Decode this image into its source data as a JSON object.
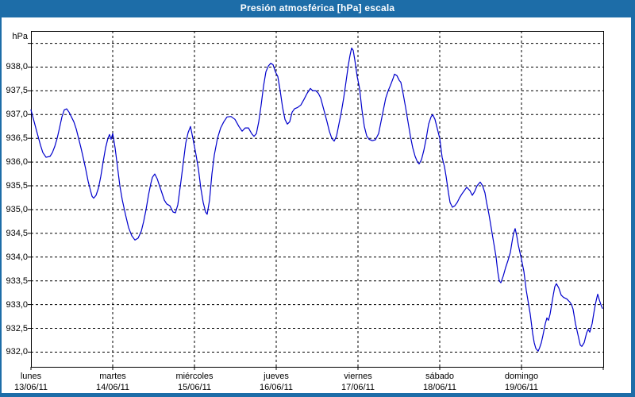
{
  "window": {
    "title": "Presión atmosférica [hPa] escala"
  },
  "colors": {
    "frame_blue": "#1d6da8",
    "panel_white": "#ffffff",
    "line_blue": "#0000cc",
    "grid_black": "#000000"
  },
  "chart_data": {
    "type": "line",
    "title": "Presión atmosférica [hPa] escala",
    "ylabel": "hPa",
    "unit_label": "hPa",
    "grid": "dashed",
    "legend": "none",
    "xlim": [
      0,
      7
    ],
    "ylim": [
      931.69,
      938.76
    ],
    "y_ticks": [
      {
        "v": 938.5,
        "label": ""
      },
      {
        "v": 938.0,
        "label": "938,0"
      },
      {
        "v": 937.5,
        "label": "937,5"
      },
      {
        "v": 937.0,
        "label": "937,0"
      },
      {
        "v": 936.5,
        "label": "936,5"
      },
      {
        "v": 936.0,
        "label": "936,0"
      },
      {
        "v": 935.5,
        "label": "935,5"
      },
      {
        "v": 935.0,
        "label": "935,0"
      },
      {
        "v": 934.5,
        "label": "934,5"
      },
      {
        "v": 934.0,
        "label": "934,0"
      },
      {
        "v": 933.5,
        "label": "933,5"
      },
      {
        "v": 933.0,
        "label": "933,0"
      },
      {
        "v": 932.5,
        "label": "932,5"
      },
      {
        "v": 932.0,
        "label": "932,0"
      }
    ],
    "x_gridlines": [
      1,
      2,
      3,
      4,
      5,
      6
    ],
    "x_labels": [
      {
        "pos": 0,
        "name": "lunes",
        "date": "13/06/11"
      },
      {
        "pos": 1,
        "name": "martes",
        "date": "14/06/11"
      },
      {
        "pos": 2,
        "name": "miércoles",
        "date": "15/06/11"
      },
      {
        "pos": 3,
        "name": "jueves",
        "date": "16/06/11"
      },
      {
        "pos": 4,
        "name": "viernes",
        "date": "17/06/11"
      },
      {
        "pos": 5,
        "name": "sábado",
        "date": "18/06/11"
      },
      {
        "pos": 6,
        "name": "domingo",
        "date": "19/06/11"
      }
    ],
    "series": [
      {
        "name": "Presión atmosférica",
        "color": "#0000cc",
        "points": [
          [
            0.0,
            937.1
          ],
          [
            0.039,
            936.85
          ],
          [
            0.078,
            936.6
          ],
          [
            0.117,
            936.35
          ],
          [
            0.146,
            936.2
          ],
          [
            0.184,
            936.1
          ],
          [
            0.233,
            936.12
          ],
          [
            0.262,
            936.2
          ],
          [
            0.291,
            936.33
          ],
          [
            0.32,
            936.5
          ],
          [
            0.35,
            936.72
          ],
          [
            0.379,
            936.95
          ],
          [
            0.408,
            937.1
          ],
          [
            0.437,
            937.12
          ],
          [
            0.466,
            937.05
          ],
          [
            0.495,
            936.95
          ],
          [
            0.524,
            936.85
          ],
          [
            0.553,
            936.7
          ],
          [
            0.583,
            936.5
          ],
          [
            0.612,
            936.3
          ],
          [
            0.641,
            936.08
          ],
          [
            0.67,
            935.85
          ],
          [
            0.699,
            935.6
          ],
          [
            0.728,
            935.4
          ],
          [
            0.748,
            935.28
          ],
          [
            0.767,
            935.24
          ],
          [
            0.796,
            935.3
          ],
          [
            0.825,
            935.45
          ],
          [
            0.854,
            935.7
          ],
          [
            0.883,
            936.0
          ],
          [
            0.913,
            936.3
          ],
          [
            0.942,
            936.5
          ],
          [
            0.961,
            936.58
          ],
          [
            0.981,
            936.48
          ],
          [
            1.0,
            936.6
          ],
          [
            1.029,
            936.3
          ],
          [
            1.058,
            935.9
          ],
          [
            1.087,
            935.5
          ],
          [
            1.117,
            935.2
          ],
          [
            1.155,
            934.9
          ],
          [
            1.194,
            934.62
          ],
          [
            1.233,
            934.45
          ],
          [
            1.272,
            934.36
          ],
          [
            1.311,
            934.4
          ],
          [
            1.35,
            934.55
          ],
          [
            1.379,
            934.75
          ],
          [
            1.408,
            935.0
          ],
          [
            1.437,
            935.3
          ],
          [
            1.466,
            935.55
          ],
          [
            1.485,
            935.68
          ],
          [
            1.515,
            935.75
          ],
          [
            1.544,
            935.65
          ],
          [
            1.573,
            935.5
          ],
          [
            1.602,
            935.35
          ],
          [
            1.631,
            935.2
          ],
          [
            1.66,
            935.12
          ],
          [
            1.699,
            935.08
          ],
          [
            1.738,
            934.95
          ],
          [
            1.767,
            934.93
          ],
          [
            1.796,
            935.1
          ],
          [
            1.835,
            935.6
          ],
          [
            1.864,
            936.0
          ],
          [
            1.893,
            936.4
          ],
          [
            1.922,
            936.62
          ],
          [
            1.951,
            936.75
          ],
          [
            1.981,
            936.5
          ],
          [
            2.019,
            936.15
          ],
          [
            2.049,
            935.85
          ],
          [
            2.078,
            935.45
          ],
          [
            2.107,
            935.15
          ],
          [
            2.136,
            934.95
          ],
          [
            2.155,
            934.9
          ],
          [
            2.184,
            935.2
          ],
          [
            2.214,
            935.75
          ],
          [
            2.243,
            936.15
          ],
          [
            2.282,
            936.5
          ],
          [
            2.32,
            936.72
          ],
          [
            2.359,
            936.85
          ],
          [
            2.398,
            936.95
          ],
          [
            2.447,
            936.96
          ],
          [
            2.495,
            936.9
          ],
          [
            2.544,
            936.75
          ],
          [
            2.583,
            936.65
          ],
          [
            2.621,
            936.72
          ],
          [
            2.66,
            936.72
          ],
          [
            2.699,
            936.6
          ],
          [
            2.728,
            936.54
          ],
          [
            2.757,
            936.6
          ],
          [
            2.786,
            936.85
          ],
          [
            2.816,
            937.2
          ],
          [
            2.845,
            937.6
          ],
          [
            2.874,
            937.9
          ],
          [
            2.903,
            938.02
          ],
          [
            2.932,
            938.08
          ],
          [
            2.961,
            938.05
          ],
          [
            2.99,
            937.9
          ],
          [
            3.019,
            937.8
          ],
          [
            3.049,
            937.5
          ],
          [
            3.078,
            937.15
          ],
          [
            3.107,
            936.9
          ],
          [
            3.136,
            936.8
          ],
          [
            3.165,
            936.85
          ],
          [
            3.194,
            937.05
          ],
          [
            3.223,
            937.12
          ],
          [
            3.262,
            937.15
          ],
          [
            3.301,
            937.2
          ],
          [
            3.34,
            937.32
          ],
          [
            3.379,
            937.45
          ],
          [
            3.418,
            937.55
          ],
          [
            3.447,
            937.5
          ],
          [
            3.485,
            937.5
          ],
          [
            3.515,
            937.45
          ],
          [
            3.544,
            937.35
          ],
          [
            3.583,
            937.1
          ],
          [
            3.621,
            936.85
          ],
          [
            3.65,
            936.65
          ],
          [
            3.68,
            936.5
          ],
          [
            3.709,
            936.44
          ],
          [
            3.738,
            936.55
          ],
          [
            3.767,
            936.8
          ],
          [
            3.796,
            937.05
          ],
          [
            3.825,
            937.35
          ],
          [
            3.854,
            937.7
          ],
          [
            3.883,
            938.05
          ],
          [
            3.903,
            938.25
          ],
          [
            3.922,
            938.4
          ],
          [
            3.942,
            938.35
          ],
          [
            3.961,
            938.15
          ],
          [
            3.99,
            937.8
          ],
          [
            4.019,
            937.55
          ],
          [
            4.049,
            937.1
          ],
          [
            4.078,
            936.75
          ],
          [
            4.107,
            936.55
          ],
          [
            4.136,
            936.48
          ],
          [
            4.175,
            936.45
          ],
          [
            4.214,
            936.47
          ],
          [
            4.252,
            936.6
          ],
          [
            4.282,
            936.85
          ],
          [
            4.311,
            937.1
          ],
          [
            4.34,
            937.35
          ],
          [
            4.369,
            937.5
          ],
          [
            4.398,
            937.62
          ],
          [
            4.427,
            937.75
          ],
          [
            4.447,
            937.85
          ],
          [
            4.476,
            937.82
          ],
          [
            4.505,
            937.72
          ],
          [
            4.524,
            937.68
          ],
          [
            4.553,
            937.43
          ],
          [
            4.583,
            937.15
          ],
          [
            4.612,
            936.85
          ],
          [
            4.641,
            936.55
          ],
          [
            4.67,
            936.3
          ],
          [
            4.699,
            936.12
          ],
          [
            4.728,
            936.0
          ],
          [
            4.748,
            935.96
          ],
          [
            4.777,
            936.05
          ],
          [
            4.806,
            936.25
          ],
          [
            4.835,
            936.5
          ],
          [
            4.864,
            936.8
          ],
          [
            4.893,
            936.95
          ],
          [
            4.913,
            937.0
          ],
          [
            4.942,
            936.9
          ],
          [
            4.971,
            936.7
          ],
          [
            5.0,
            936.5
          ],
          [
            5.029,
            936.1
          ],
          [
            5.058,
            935.9
          ],
          [
            5.078,
            935.7
          ],
          [
            5.107,
            935.35
          ],
          [
            5.126,
            935.15
          ],
          [
            5.155,
            935.05
          ],
          [
            5.184,
            935.08
          ],
          [
            5.214,
            935.15
          ],
          [
            5.243,
            935.25
          ],
          [
            5.272,
            935.33
          ],
          [
            5.301,
            935.4
          ],
          [
            5.33,
            935.47
          ],
          [
            5.369,
            935.4
          ],
          [
            5.398,
            935.3
          ],
          [
            5.427,
            935.38
          ],
          [
            5.456,
            935.5
          ],
          [
            5.495,
            935.58
          ],
          [
            5.524,
            935.5
          ],
          [
            5.553,
            935.35
          ],
          [
            5.573,
            935.15
          ],
          [
            5.602,
            934.9
          ],
          [
            5.631,
            934.6
          ],
          [
            5.66,
            934.3
          ],
          [
            5.689,
            934.0
          ],
          [
            5.709,
            933.7
          ],
          [
            5.728,
            933.5
          ],
          [
            5.748,
            933.46
          ],
          [
            5.777,
            933.6
          ],
          [
            5.806,
            933.78
          ],
          [
            5.835,
            933.93
          ],
          [
            5.864,
            934.1
          ],
          [
            5.883,
            934.3
          ],
          [
            5.903,
            934.5
          ],
          [
            5.922,
            934.6
          ],
          [
            5.942,
            934.45
          ],
          [
            5.961,
            934.25
          ],
          [
            5.981,
            934.1
          ],
          [
            6.0,
            933.95
          ],
          [
            6.029,
            933.7
          ],
          [
            6.058,
            933.3
          ],
          [
            6.087,
            933.0
          ],
          [
            6.107,
            932.8
          ],
          [
            6.136,
            932.4
          ],
          [
            6.155,
            932.2
          ],
          [
            6.175,
            932.08
          ],
          [
            6.204,
            932.02
          ],
          [
            6.223,
            932.1
          ],
          [
            6.243,
            932.2
          ],
          [
            6.262,
            932.35
          ],
          [
            6.291,
            932.6
          ],
          [
            6.311,
            932.72
          ],
          [
            6.33,
            932.67
          ],
          [
            6.35,
            932.8
          ],
          [
            6.369,
            933.0
          ],
          [
            6.388,
            933.2
          ],
          [
            6.408,
            933.38
          ],
          [
            6.427,
            933.44
          ],
          [
            6.456,
            933.35
          ],
          [
            6.485,
            933.2
          ],
          [
            6.515,
            933.15
          ],
          [
            6.553,
            933.12
          ],
          [
            6.592,
            933.05
          ],
          [
            6.612,
            933.0
          ],
          [
            6.631,
            932.9
          ],
          [
            6.66,
            932.6
          ],
          [
            6.68,
            932.45
          ],
          [
            6.699,
            932.3
          ],
          [
            6.718,
            932.15
          ],
          [
            6.738,
            932.12
          ],
          [
            6.767,
            932.2
          ],
          [
            6.796,
            932.4
          ],
          [
            6.816,
            932.48
          ],
          [
            6.835,
            932.42
          ],
          [
            6.864,
            932.6
          ],
          [
            6.883,
            932.8
          ],
          [
            6.903,
            933.0
          ],
          [
            6.922,
            933.15
          ],
          [
            6.932,
            933.22
          ],
          [
            6.951,
            933.1
          ],
          [
            6.971,
            933.0
          ],
          [
            6.99,
            932.92
          ]
        ]
      }
    ]
  }
}
